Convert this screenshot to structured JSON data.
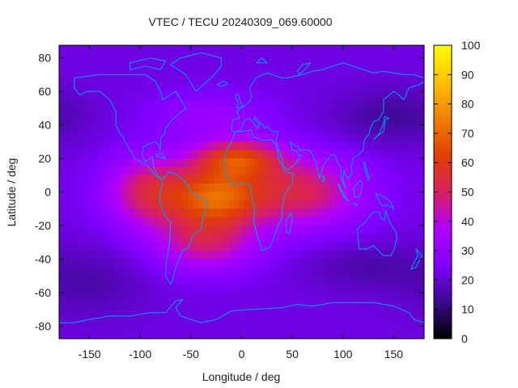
{
  "chart_data": {
    "type": "heatmap",
    "title": "VTEC / TECU 20240309_069.60000",
    "xlabel": "Longitude / deg",
    "ylabel": "Latitude / deg",
    "xlim": [
      -180,
      180
    ],
    "ylim": [
      -87.5,
      87.5
    ],
    "xticks": [
      -150,
      -100,
      -50,
      0,
      50,
      100,
      150
    ],
    "yticks": [
      -80,
      -60,
      -40,
      -20,
      0,
      20,
      40,
      60,
      80
    ],
    "colorbar": {
      "min": 0,
      "max": 100,
      "ticks": [
        0,
        10,
        20,
        30,
        40,
        50,
        60,
        70,
        80,
        90,
        100
      ]
    },
    "colormap": [
      "#000000",
      "#3a0a8c",
      "#8000ff",
      "#b000ff",
      "#d82060",
      "#e04000",
      "#f08000",
      "#ffc000",
      "#ffff00"
    ],
    "grid": {
      "lon_step_deg": 5,
      "lat_step_deg": 5
    },
    "field": {
      "background": 22,
      "blobs": [
        {
          "lon": -25,
          "lat": -3,
          "sigma_lon": 30,
          "sigma_lat": 12,
          "amp": 40
        },
        {
          "lon": -5,
          "lat": 20,
          "sigma_lon": 30,
          "sigma_lat": 8,
          "amp": 35
        },
        {
          "lon": -90,
          "lat": 0,
          "sigma_lon": 30,
          "sigma_lat": 15,
          "amp": 30
        },
        {
          "lon": -35,
          "lat": -30,
          "sigma_lon": 35,
          "sigma_lat": 12,
          "amp": 25
        },
        {
          "lon": 55,
          "lat": 0,
          "sigma_lon": 45,
          "sigma_lat": 15,
          "amp": 30
        },
        {
          "lon": -30,
          "lat": 45,
          "sigma_lon": 40,
          "sigma_lat": 10,
          "amp": 10
        },
        {
          "lon": 150,
          "lat": 45,
          "sigma_lon": 40,
          "sigma_lat": 12,
          "amp": -8
        },
        {
          "lon": 120,
          "lat": -45,
          "sigma_lon": 40,
          "sigma_lat": 10,
          "amp": -6
        },
        {
          "lon": -150,
          "lat": -55,
          "sigma_lon": 40,
          "sigma_lat": 15,
          "amp": -6
        }
      ]
    },
    "coastline_color": "#00a0ff",
    "coastlines": [
      [
        [
          -165,
          68
        ],
        [
          -140,
          70
        ],
        [
          -125,
          70
        ],
        [
          -95,
          70
        ],
        [
          -85,
          66
        ],
        [
          -80,
          60
        ],
        [
          -78,
          55
        ],
        [
          -65,
          60
        ],
        [
          -60,
          55
        ],
        [
          -55,
          50
        ],
        [
          -65,
          45
        ],
        [
          -70,
          42
        ],
        [
          -75,
          38
        ],
        [
          -76,
          35
        ],
        [
          -80,
          32
        ],
        [
          -80,
          25
        ],
        [
          -82,
          28
        ],
        [
          -85,
          30
        ],
        [
          -90,
          29
        ],
        [
          -97,
          27
        ],
        [
          -98,
          22
        ],
        [
          -95,
          18
        ],
        [
          -88,
          21
        ],
        [
          -87,
          15
        ],
        [
          -83,
          10
        ],
        [
          -80,
          8
        ],
        [
          -85,
          10
        ],
        [
          -92,
          15
        ],
        [
          -105,
          20
        ],
        [
          -110,
          25
        ],
        [
          -115,
          30
        ],
        [
          -117,
          33
        ],
        [
          -120,
          35
        ],
        [
          -124,
          40
        ],
        [
          -124,
          48
        ],
        [
          -130,
          55
        ],
        [
          -140,
          60
        ],
        [
          -152,
          60
        ],
        [
          -160,
          58
        ],
        [
          -165,
          62
        ],
        [
          -165,
          68
        ]
      ],
      [
        [
          -80,
          8
        ],
        [
          -77,
          8
        ],
        [
          -72,
          12
        ],
        [
          -63,
          10
        ],
        [
          -55,
          6
        ],
        [
          -50,
          0
        ],
        [
          -45,
          -2
        ],
        [
          -35,
          -5
        ],
        [
          -35,
          -10
        ],
        [
          -38,
          -15
        ],
        [
          -40,
          -22
        ],
        [
          -48,
          -26
        ],
        [
          -52,
          -33
        ],
        [
          -58,
          -35
        ],
        [
          -62,
          -40
        ],
        [
          -65,
          -45
        ],
        [
          -68,
          -52
        ],
        [
          -70,
          -55
        ],
        [
          -75,
          -50
        ],
        [
          -74,
          -40
        ],
        [
          -71,
          -30
        ],
        [
          -70,
          -18
        ],
        [
          -76,
          -14
        ],
        [
          -81,
          -5
        ],
        [
          -80,
          0
        ],
        [
          -78,
          5
        ],
        [
          -80,
          8
        ]
      ],
      [
        [
          -45,
          60
        ],
        [
          -30,
          68
        ],
        [
          -20,
          75
        ],
        [
          -20,
          80
        ],
        [
          -40,
          83
        ],
        [
          -60,
          80
        ],
        [
          -70,
          76
        ],
        [
          -55,
          70
        ],
        [
          -50,
          65
        ],
        [
          -45,
          60
        ]
      ],
      [
        [
          -17,
          15
        ],
        [
          -17,
          21
        ],
        [
          -13,
          27
        ],
        [
          -10,
          30
        ],
        [
          -6,
          36
        ],
        [
          0,
          36
        ],
        [
          10,
          37
        ],
        [
          11,
          33
        ],
        [
          20,
          31
        ],
        [
          30,
          31
        ],
        [
          34,
          28
        ],
        [
          36,
          22
        ],
        [
          38,
          18
        ],
        [
          43,
          12
        ],
        [
          51,
          11
        ],
        [
          50,
          5
        ],
        [
          42,
          -2
        ],
        [
          40,
          -10
        ],
        [
          40,
          -15
        ],
        [
          35,
          -22
        ],
        [
          32,
          -27
        ],
        [
          28,
          -33
        ],
        [
          20,
          -35
        ],
        [
          18,
          -30
        ],
        [
          15,
          -25
        ],
        [
          12,
          -17
        ],
        [
          13,
          -10
        ],
        [
          9,
          -1
        ],
        [
          9,
          4
        ],
        [
          5,
          5
        ],
        [
          -5,
          5
        ],
        [
          -8,
          4
        ],
        [
          -12,
          7
        ],
        [
          -15,
          10
        ],
        [
          -17,
          15
        ]
      ],
      [
        [
          -10,
          36
        ],
        [
          -9,
          43
        ],
        [
          -2,
          44
        ],
        [
          -5,
          48
        ],
        [
          2,
          51
        ],
        [
          8,
          54
        ],
        [
          10,
          57
        ],
        [
          8,
          62
        ],
        [
          14,
          68
        ],
        [
          25,
          71
        ],
        [
          40,
          68
        ],
        [
          45,
          68
        ],
        [
          60,
          70
        ],
        [
          70,
          72
        ],
        [
          80,
          73
        ],
        [
          100,
          77
        ],
        [
          110,
          75
        ],
        [
          130,
          71
        ],
        [
          140,
          72
        ],
        [
          160,
          70
        ],
        [
          170,
          70
        ],
        [
          180,
          68
        ],
        [
          180,
          66
        ],
        [
          175,
          64
        ],
        [
          165,
          62
        ],
        [
          160,
          55
        ],
        [
          155,
          58
        ],
        [
          150,
          60
        ],
        [
          140,
          55
        ],
        [
          140,
          48
        ],
        [
          135,
          43
        ],
        [
          130,
          42
        ],
        [
          127,
          38
        ],
        [
          126,
          35
        ],
        [
          121,
          31
        ],
        [
          120,
          25
        ],
        [
          115,
          22
        ],
        [
          110,
          20
        ],
        [
          108,
          15
        ],
        [
          109,
          11
        ],
        [
          105,
          8
        ],
        [
          103,
          10
        ],
        [
          101,
          13
        ],
        [
          100,
          7
        ],
        [
          103,
          2
        ],
        [
          98,
          8
        ],
        [
          98,
          15
        ],
        [
          95,
          17
        ],
        [
          92,
          22
        ],
        [
          88,
          22
        ],
        [
          80,
          15
        ],
        [
          77,
          8
        ],
        [
          73,
          18
        ],
        [
          70,
          22
        ],
        [
          67,
          25
        ],
        [
          57,
          25
        ],
        [
          56,
          27
        ],
        [
          52,
          28
        ],
        [
          48,
          30
        ],
        [
          50,
          25
        ],
        [
          55,
          24
        ],
        [
          56,
          22
        ],
        [
          59,
          22
        ],
        [
          52,
          16
        ],
        [
          45,
          13
        ],
        [
          42,
          15
        ],
        [
          39,
          21
        ],
        [
          35,
          28
        ],
        [
          34,
          31
        ],
        [
          36,
          36
        ],
        [
          30,
          36
        ],
        [
          26,
          39
        ],
        [
          23,
          38
        ],
        [
          21,
          40
        ],
        [
          19,
          41
        ],
        [
          13,
          45
        ],
        [
          12,
          44
        ],
        [
          18,
          40
        ],
        [
          16,
          38
        ],
        [
          12,
          41
        ],
        [
          8,
          44
        ],
        [
          3,
          43
        ],
        [
          -1,
          37
        ],
        [
          -5,
          36
        ],
        [
          -10,
          36
        ]
      ],
      [
        [
          114,
          -22
        ],
        [
          116,
          -34
        ],
        [
          123,
          -34
        ],
        [
          130,
          -32
        ],
        [
          135,
          -35
        ],
        [
          140,
          -38
        ],
        [
          147,
          -38
        ],
        [
          150,
          -35
        ],
        [
          153,
          -28
        ],
        [
          153,
          -25
        ],
        [
          146,
          -18
        ],
        [
          142,
          -11
        ],
        [
          141,
          -17
        ],
        [
          137,
          -15
        ],
        [
          136,
          -12
        ],
        [
          130,
          -12
        ],
        [
          127,
          -14
        ],
        [
          122,
          -18
        ],
        [
          114,
          -22
        ]
      ],
      [
        [
          -180,
          -78
        ],
        [
          -165,
          -78
        ],
        [
          -150,
          -76
        ],
        [
          -130,
          -74
        ],
        [
          -110,
          -74
        ],
        [
          -90,
          -72
        ],
        [
          -75,
          -72
        ],
        [
          -65,
          -65
        ],
        [
          -58,
          -64
        ],
        [
          -65,
          -69
        ],
        [
          -60,
          -74
        ],
        [
          -40,
          -78
        ],
        [
          -25,
          -76
        ],
        [
          -10,
          -71
        ],
        [
          10,
          -70
        ],
        [
          40,
          -69
        ],
        [
          55,
          -67
        ],
        [
          70,
          -68
        ],
        [
          90,
          -66
        ],
        [
          110,
          -66
        ],
        [
          130,
          -66
        ],
        [
          150,
          -68
        ],
        [
          165,
          -72
        ],
        [
          170,
          -76
        ],
        [
          180,
          -78
        ]
      ],
      [
        [
          -5,
          50
        ],
        [
          1,
          51
        ],
        [
          -2,
          55
        ],
        [
          -3,
          58
        ],
        [
          -6,
          58
        ],
        [
          -5,
          55
        ],
        [
          -3,
          53
        ],
        [
          -5,
          50
        ]
      ],
      [
        [
          130,
          31
        ],
        [
          135,
          34
        ],
        [
          140,
          36
        ],
        [
          141,
          40
        ],
        [
          142,
          43
        ],
        [
          145,
          44
        ],
        [
          141,
          45
        ],
        [
          140,
          41
        ],
        [
          136,
          35
        ],
        [
          130,
          31
        ]
      ],
      [
        [
          49,
          -12
        ],
        [
          50,
          -16
        ],
        [
          49,
          -20
        ],
        [
          47,
          -25
        ],
        [
          44,
          -24
        ],
        [
          44,
          -17
        ],
        [
          49,
          -12
        ]
      ],
      [
        [
          172,
          -34
        ],
        [
          178,
          -38
        ],
        [
          175,
          -41
        ],
        [
          172,
          -45
        ],
        [
          167,
          -46
        ],
        [
          170,
          -42
        ],
        [
          174,
          -38
        ],
        [
          172,
          -34
        ]
      ],
      [
        [
          95,
          5
        ],
        [
          100,
          0
        ],
        [
          104,
          -4
        ],
        [
          106,
          -6
        ],
        [
          101,
          -3
        ],
        [
          96,
          3
        ],
        [
          95,
          5
        ]
      ],
      [
        [
          110,
          -7
        ],
        [
          115,
          -8
        ],
        [
          112,
          -7
        ],
        [
          110,
          -7
        ]
      ],
      [
        [
          110,
          2
        ],
        [
          117,
          7
        ],
        [
          119,
          5
        ],
        [
          118,
          0
        ],
        [
          116,
          -3
        ],
        [
          112,
          -3
        ],
        [
          110,
          2
        ]
      ],
      [
        [
          132,
          -1
        ],
        [
          141,
          -3
        ],
        [
          147,
          -6
        ],
        [
          150,
          -10
        ],
        [
          144,
          -8
        ],
        [
          138,
          -8
        ],
        [
          132,
          -1
        ]
      ],
      [
        [
          -24,
          64
        ],
        [
          -18,
          66
        ],
        [
          -14,
          65
        ],
        [
          -15,
          64
        ],
        [
          -20,
          63
        ],
        [
          -24,
          64
        ]
      ],
      [
        [
          -85,
          22
        ],
        [
          -78,
          23
        ],
        [
          -75,
          20
        ],
        [
          -82,
          21
        ],
        [
          -85,
          22
        ]
      ],
      [
        [
          80,
          10
        ],
        [
          82,
          7
        ],
        [
          80,
          6
        ],
        [
          80,
          10
        ]
      ],
      [
        [
          120,
          18
        ],
        [
          122,
          17
        ],
        [
          124,
          12
        ],
        [
          126,
          8
        ],
        [
          125,
          7
        ],
        [
          122,
          13
        ],
        [
          120,
          18
        ]
      ],
      [
        [
          -110,
          73
        ],
        [
          -95,
          75
        ],
        [
          -80,
          73
        ],
        [
          -75,
          78
        ],
        [
          -90,
          80
        ],
        [
          -110,
          77
        ],
        [
          -110,
          73
        ]
      ],
      [
        [
          20,
          80
        ],
        [
          15,
          77
        ],
        [
          25,
          77
        ],
        [
          20,
          80
        ]
      ],
      [
        [
          55,
          72
        ],
        [
          60,
          76
        ],
        [
          68,
          77
        ],
        [
          57,
          70
        ],
        [
          55,
          72
        ]
      ]
    ]
  }
}
